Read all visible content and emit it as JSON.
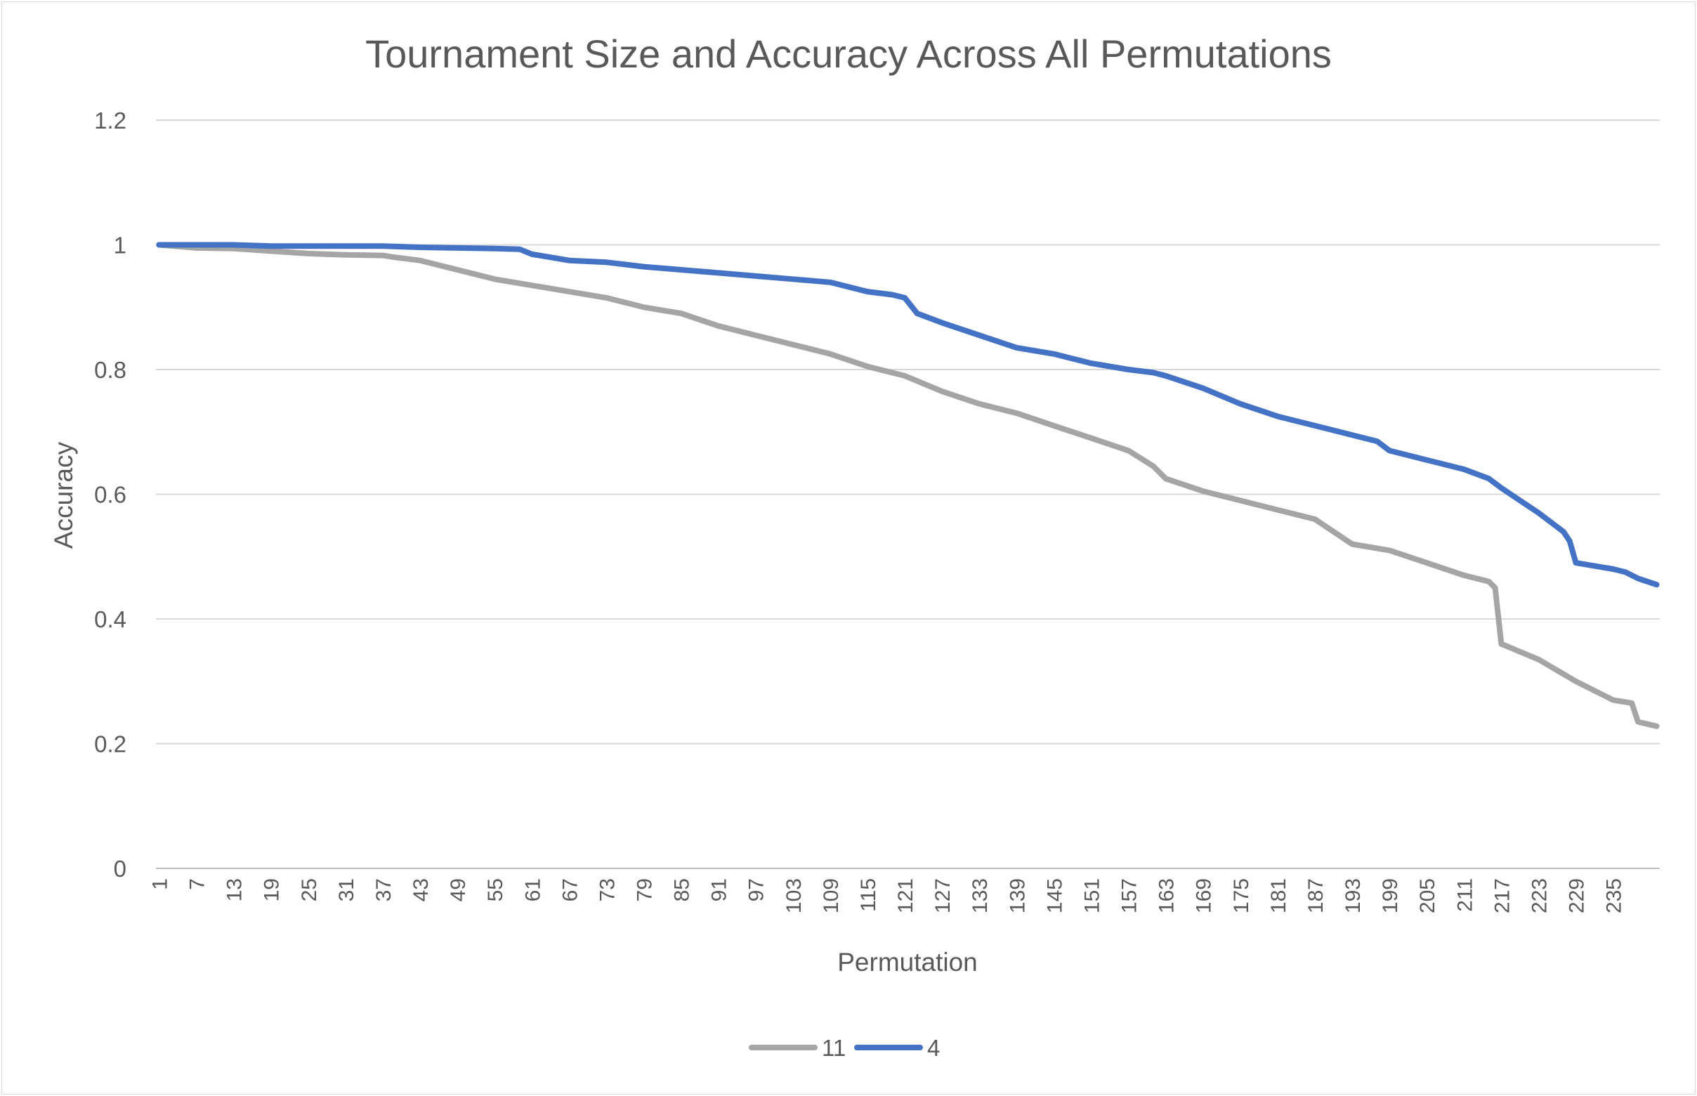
{
  "chart_data": {
    "type": "line",
    "title": "Tournament Size and Accuracy Across All Permutations",
    "xlabel": "Permutation",
    "ylabel": "Accuracy",
    "ylim": [
      0,
      1.2
    ],
    "ytick_labels": [
      "0",
      "0.2",
      "0.4",
      "0.6",
      "0.8",
      "1",
      "1.2"
    ],
    "xtick_labels": [
      "1",
      "7",
      "13",
      "19",
      "25",
      "31",
      "37",
      "43",
      "49",
      "55",
      "61",
      "67",
      "73",
      "79",
      "85",
      "91",
      "97",
      "103",
      "109",
      "115",
      "121",
      "127",
      "133",
      "139",
      "145",
      "151",
      "157",
      "163",
      "169",
      "175",
      "181",
      "187",
      "193",
      "199",
      "205",
      "211",
      "217",
      "223",
      "229",
      "235"
    ],
    "x_count": 242,
    "grid": "horizontal",
    "legend_position": "bottom",
    "series": [
      {
        "name": "11",
        "color": "#a5a5a5",
        "x": [
          1,
          7,
          13,
          19,
          25,
          31,
          37,
          39,
          43,
          49,
          55,
          61,
          67,
          73,
          77,
          79,
          85,
          91,
          97,
          103,
          109,
          115,
          121,
          127,
          133,
          139,
          145,
          151,
          157,
          161,
          163,
          169,
          175,
          181,
          187,
          193,
          199,
          205,
          211,
          215,
          216,
          217,
          223,
          229,
          235,
          238,
          239,
          242
        ],
        "y": [
          1.0,
          0.995,
          0.994,
          0.99,
          0.986,
          0.984,
          0.983,
          0.98,
          0.975,
          0.96,
          0.945,
          0.935,
          0.925,
          0.915,
          0.905,
          0.9,
          0.89,
          0.87,
          0.855,
          0.84,
          0.825,
          0.805,
          0.79,
          0.765,
          0.745,
          0.73,
          0.71,
          0.69,
          0.67,
          0.645,
          0.625,
          0.605,
          0.59,
          0.575,
          0.56,
          0.52,
          0.51,
          0.49,
          0.47,
          0.46,
          0.45,
          0.36,
          0.335,
          0.3,
          0.27,
          0.265,
          0.235,
          0.228
        ]
      },
      {
        "name": "4",
        "color": "#4472c4",
        "x": [
          1,
          7,
          13,
          19,
          25,
          31,
          37,
          43,
          49,
          55,
          59,
          61,
          67,
          73,
          79,
          85,
          91,
          97,
          103,
          109,
          115,
          119,
          121,
          123,
          127,
          133,
          139,
          145,
          151,
          157,
          161,
          163,
          169,
          175,
          181,
          187,
          193,
          197,
          199,
          205,
          211,
          215,
          217,
          223,
          227,
          228,
          229,
          235,
          237,
          239,
          242
        ],
        "y": [
          1.0,
          1.0,
          1.0,
          0.998,
          0.998,
          0.998,
          0.998,
          0.996,
          0.995,
          0.994,
          0.993,
          0.985,
          0.975,
          0.972,
          0.965,
          0.96,
          0.955,
          0.95,
          0.945,
          0.94,
          0.925,
          0.92,
          0.915,
          0.89,
          0.875,
          0.855,
          0.835,
          0.825,
          0.81,
          0.8,
          0.795,
          0.79,
          0.77,
          0.745,
          0.725,
          0.71,
          0.695,
          0.685,
          0.67,
          0.655,
          0.64,
          0.625,
          0.61,
          0.57,
          0.54,
          0.525,
          0.49,
          0.48,
          0.475,
          0.465,
          0.455
        ]
      }
    ]
  }
}
